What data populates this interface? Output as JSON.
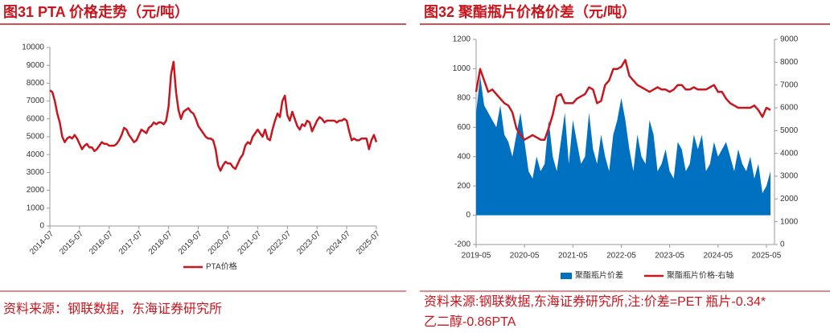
{
  "chart_data": [
    {
      "type": "line",
      "title": "图31  PTA 价格走势（元/吨）",
      "source": [
        "资料来源：钢联数据，东海证券研究所"
      ],
      "x": [
        "2014-07",
        "2014-08",
        "2014-09",
        "2014-10",
        "2014-11",
        "2014-12",
        "2015-01",
        "2015-02",
        "2015-03",
        "2015-04",
        "2015-05",
        "2015-06",
        "2015-07",
        "2015-08",
        "2015-09",
        "2015-10",
        "2015-11",
        "2015-12",
        "2016-01",
        "2016-02",
        "2016-03",
        "2016-04",
        "2016-05",
        "2016-06",
        "2016-07",
        "2016-08",
        "2016-09",
        "2016-10",
        "2016-11",
        "2016-12",
        "2017-01",
        "2017-02",
        "2017-03",
        "2017-04",
        "2017-05",
        "2017-06",
        "2017-07",
        "2017-08",
        "2017-09",
        "2017-10",
        "2017-11",
        "2017-12",
        "2018-01",
        "2018-02",
        "2018-03",
        "2018-04",
        "2018-05",
        "2018-06",
        "2018-07",
        "2018-08",
        "2018-09",
        "2018-10",
        "2018-11",
        "2018-12",
        "2019-01",
        "2019-02",
        "2019-03",
        "2019-04",
        "2019-05",
        "2019-06",
        "2019-07",
        "2019-08",
        "2019-09",
        "2019-10",
        "2019-11",
        "2019-12",
        "2020-01",
        "2020-02",
        "2020-03",
        "2020-04",
        "2020-05",
        "2020-06",
        "2020-07",
        "2020-08",
        "2020-09",
        "2020-10",
        "2020-11",
        "2020-12",
        "2021-01",
        "2021-02",
        "2021-03",
        "2021-04",
        "2021-05",
        "2021-06",
        "2021-07",
        "2021-08",
        "2021-09",
        "2021-10",
        "2021-11",
        "2021-12",
        "2022-01",
        "2022-02",
        "2022-03",
        "2022-04",
        "2022-05",
        "2022-06",
        "2022-07",
        "2022-08",
        "2022-09",
        "2022-10",
        "2022-11",
        "2022-12",
        "2023-01",
        "2023-02",
        "2023-03",
        "2023-04",
        "2023-05",
        "2023-06",
        "2023-07",
        "2023-08",
        "2023-09",
        "2023-10",
        "2023-11",
        "2023-12",
        "2024-01",
        "2024-02",
        "2024-03",
        "2024-04",
        "2024-05",
        "2024-06",
        "2024-07",
        "2024-08",
        "2024-09",
        "2024-10",
        "2024-11",
        "2024-12",
        "2025-01",
        "2025-02",
        "2025-03",
        "2025-04",
        "2025-05",
        "2025-06",
        "2025-07"
      ],
      "series": [
        {
          "name": "PTA价格",
          "color": "#c8161e",
          "kind": "line",
          "axis": "y",
          "values": [
            7600,
            7500,
            7000,
            6300,
            5800,
            5000,
            4700,
            4900,
            5000,
            4900,
            5100,
            4900,
            4600,
            4300,
            4500,
            4600,
            4400,
            4400,
            4200,
            4300,
            4500,
            4700,
            4600,
            4600,
            4500,
            4500,
            4500,
            4600,
            4800,
            5100,
            5500,
            5400,
            5100,
            4900,
            4700,
            4800,
            5100,
            5400,
            5300,
            5200,
            5500,
            5600,
            5800,
            5700,
            5800,
            5800,
            5700,
            5900,
            6700,
            8500,
            9200,
            7500,
            6500,
            6000,
            6400,
            6500,
            6600,
            6400,
            6300,
            6000,
            5600,
            5400,
            5200,
            5000,
            4900,
            4900,
            4800,
            4300,
            3400,
            3100,
            3400,
            3600,
            3500,
            3500,
            3300,
            3200,
            3500,
            3800,
            4000,
            4500,
            4700,
            4600,
            5000,
            5200,
            5400,
            5200,
            5000,
            5400,
            4900,
            4800,
            5400,
            5900,
            6300,
            6100,
            7000,
            7300,
            6200,
            5900,
            6400,
            6000,
            5600,
            5400,
            5700,
            5600,
            5900,
            5800,
            5300,
            5600,
            5900,
            6100,
            6000,
            5800,
            5900,
            5900,
            5900,
            5900,
            5800,
            5900,
            5900,
            6000,
            5900,
            5300,
            4800,
            4900,
            4800,
            4800,
            4900,
            4900,
            4900,
            4300,
            4800,
            5100,
            4700
          ]
        }
      ],
      "xlim": [
        "2014-07",
        "2025-07"
      ],
      "xticks": [
        "2014-07",
        "2015-07",
        "2016-07",
        "2017-07",
        "2018-07",
        "2019-07",
        "2020-07",
        "2021-07",
        "2022-07",
        "2023-07",
        "2024-07",
        "2025-07"
      ],
      "ylim": [
        0,
        10000
      ],
      "yticks": [
        0,
        1000,
        2000,
        3000,
        4000,
        5000,
        6000,
        7000,
        8000,
        9000,
        10000
      ]
    },
    {
      "type": "combo",
      "title": "图32  聚酯瓶片价格价差（元/吨）",
      "source": [
        "资料来源:钢联数据,东海证券研究所,注:价差=PET 瓶片-0.34*",
        "乙二醇-0.86PTA"
      ],
      "x": [
        "2019-05",
        "2019-06",
        "2019-07",
        "2019-08",
        "2019-09",
        "2019-10",
        "2019-11",
        "2019-12",
        "2020-01",
        "2020-02",
        "2020-03",
        "2020-04",
        "2020-05",
        "2020-06",
        "2020-07",
        "2020-08",
        "2020-09",
        "2020-10",
        "2020-11",
        "2020-12",
        "2021-01",
        "2021-02",
        "2021-03",
        "2021-04",
        "2021-05",
        "2021-06",
        "2021-07",
        "2021-08",
        "2021-09",
        "2021-10",
        "2021-11",
        "2021-12",
        "2022-01",
        "2022-02",
        "2022-03",
        "2022-04",
        "2022-05",
        "2022-06",
        "2022-07",
        "2022-08",
        "2022-09",
        "2022-10",
        "2022-11",
        "2022-12",
        "2023-01",
        "2023-02",
        "2023-03",
        "2023-04",
        "2023-05",
        "2023-06",
        "2023-07",
        "2023-08",
        "2023-09",
        "2023-10",
        "2023-11",
        "2023-12",
        "2024-01",
        "2024-02",
        "2024-03",
        "2024-04",
        "2024-05",
        "2024-06",
        "2024-07",
        "2024-08",
        "2024-09",
        "2024-10",
        "2024-11",
        "2024-12",
        "2025-01",
        "2025-02",
        "2025-03",
        "2025-04",
        "2025-05",
        "2025-06"
      ],
      "series": [
        {
          "name": "聚酯瓶片价差",
          "color": "#0070c0",
          "kind": "area",
          "axis": "y",
          "values": [
            700,
            950,
            750,
            700,
            650,
            600,
            750,
            550,
            500,
            400,
            550,
            700,
            500,
            300,
            250,
            400,
            300,
            350,
            650,
            400,
            300,
            500,
            700,
            350,
            650,
            500,
            350,
            400,
            700,
            450,
            350,
            550,
            400,
            300,
            550,
            650,
            800,
            650,
            450,
            300,
            550,
            400,
            350,
            650,
            550,
            300,
            350,
            450,
            300,
            250,
            500,
            450,
            300,
            350,
            550,
            450,
            550,
            300,
            350,
            500,
            400,
            450,
            500,
            400,
            300,
            450,
            350,
            300,
            400,
            250,
            350,
            150,
            200,
            300
          ]
        },
        {
          "name": "聚酯瓶片价格-右轴",
          "color": "#c8161e",
          "kind": "line",
          "axis": "y2",
          "values": [
            6700,
            7700,
            7200,
            6700,
            6800,
            6600,
            6400,
            6200,
            6100,
            5800,
            5100,
            4800,
            4600,
            4700,
            4800,
            4700,
            4600,
            4600,
            5100,
            5700,
            6500,
            6600,
            6200,
            6200,
            6200,
            6400,
            6500,
            6600,
            6900,
            6800,
            6200,
            6300,
            7000,
            7200,
            7700,
            7700,
            7800,
            8100,
            7400,
            7200,
            7000,
            6900,
            6800,
            6700,
            6800,
            6900,
            6800,
            6800,
            6700,
            6800,
            7000,
            7000,
            6800,
            6800,
            6900,
            6800,
            6800,
            6800,
            6900,
            7000,
            6700,
            6700,
            6400,
            6200,
            6100,
            6000,
            6000,
            6000,
            6000,
            6100,
            5900,
            5600,
            6000,
            5900
          ]
        }
      ],
      "xlim": [
        "2019-05",
        "2025-07"
      ],
      "xticks": [
        "2019-05",
        "2020-05",
        "2021-05",
        "2022-05",
        "2023-05",
        "2024-05",
        "2025-05"
      ],
      "ylim": [
        -200,
        1200
      ],
      "yticks": [
        -200,
        0,
        200,
        400,
        600,
        800,
        1000,
        1200
      ],
      "y2lim": [
        0,
        9000
      ],
      "y2ticks": [
        0,
        1000,
        2000,
        3000,
        4000,
        5000,
        6000,
        7000,
        8000,
        9000
      ]
    }
  ]
}
